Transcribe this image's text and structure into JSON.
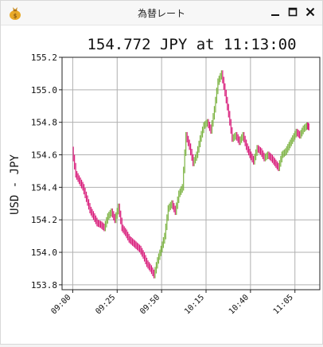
{
  "window": {
    "title": "為替レート",
    "icon": "money-bag-icon",
    "controls": [
      "minimize-icon",
      "maximize-icon",
      "close-icon"
    ]
  },
  "chart_data": {
    "type": "line",
    "title": "154.772 JPY at 11:13:00",
    "ylabel": "USD - JPY",
    "xlabel": "",
    "x_ticks": [
      "09:00",
      "09:25",
      "09:50",
      "10:15",
      "10:40",
      "11:05"
    ],
    "x_tick_minutes": [
      0,
      25,
      50,
      75,
      100,
      125
    ],
    "xlim_minutes": [
      -6,
      139
    ],
    "y_ticks": [
      153.8,
      154.0,
      154.2,
      154.4,
      154.6,
      154.8,
      155.0,
      155.2
    ],
    "ylim": [
      153.77,
      155.2
    ],
    "grid": true,
    "up_color": "#7cb342",
    "down_color": "#d81b7a",
    "series": [
      {
        "x_minutes": [
          0,
          2,
          4,
          6,
          8,
          10,
          12,
          14,
          16,
          18,
          20,
          22,
          24,
          26,
          28,
          30,
          32,
          34,
          36,
          38,
          40,
          42,
          44,
          46,
          48,
          50,
          52,
          54,
          56,
          58,
          60,
          62,
          64,
          66,
          68,
          70,
          72,
          74,
          76,
          78,
          80,
          82,
          84,
          86,
          88,
          90,
          92,
          94,
          96,
          98,
          100,
          102,
          104,
          106,
          108,
          110,
          112,
          114,
          116,
          118,
          120,
          122,
          124,
          126,
          128,
          130,
          132,
          133
        ],
        "values": [
          154.63,
          154.48,
          154.44,
          154.4,
          154.33,
          154.26,
          154.22,
          154.18,
          154.17,
          154.15,
          154.22,
          154.25,
          154.2,
          154.28,
          154.15,
          154.12,
          154.08,
          154.06,
          154.04,
          154.02,
          153.98,
          153.93,
          153.9,
          153.86,
          153.95,
          154.02,
          154.1,
          154.27,
          154.3,
          154.25,
          154.36,
          154.4,
          154.72,
          154.65,
          154.55,
          154.6,
          154.7,
          154.78,
          154.8,
          154.75,
          154.88,
          155.05,
          155.1,
          154.98,
          154.85,
          154.7,
          154.72,
          154.68,
          154.72,
          154.65,
          154.6,
          154.56,
          154.64,
          154.62,
          154.58,
          154.6,
          154.58,
          154.55,
          154.52,
          154.6,
          154.62,
          154.66,
          154.7,
          154.74,
          154.72,
          154.76,
          154.78,
          154.77
        ]
      }
    ]
  }
}
